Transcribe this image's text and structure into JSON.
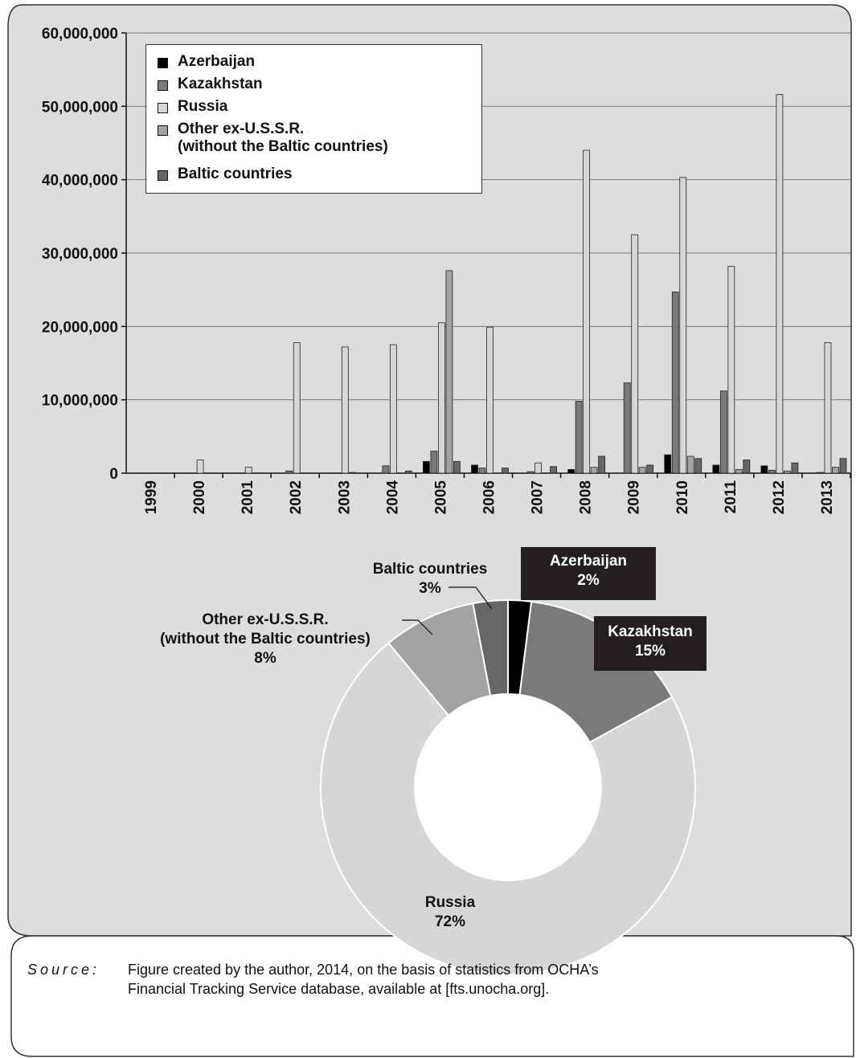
{
  "colors": {
    "panel_bg": "#dcdddf",
    "azerbaijan": "#000000",
    "kazakhstan": "#7a7a7a",
    "russia": "#d6d6d6",
    "other_ex_ussr": "#a3a3a3",
    "baltic": "#666666"
  },
  "chart_data": [
    {
      "type": "bar",
      "categories": [
        "1999",
        "2000",
        "2001",
        "2002",
        "2003",
        "2004",
        "2005",
        "2006",
        "2007",
        "2008",
        "2009",
        "2010",
        "2011",
        "2012",
        "2013"
      ],
      "series": [
        {
          "name": "Azerbaijan",
          "values": [
            0,
            0,
            0,
            0,
            0,
            0,
            1600000,
            1100000,
            0,
            500000,
            0,
            2500000,
            1100000,
            1000000,
            0
          ]
        },
        {
          "name": "Kazakhstan",
          "values": [
            0,
            0,
            0,
            300000,
            0,
            1000000,
            3000000,
            700000,
            200000,
            9800000,
            12300000,
            24700000,
            11200000,
            400000,
            100000
          ]
        },
        {
          "name": "Russia",
          "values": [
            0,
            1800000,
            800000,
            17800000,
            17200000,
            17500000,
            20500000,
            19900000,
            1400000,
            44000000,
            32500000,
            40300000,
            28200000,
            51600000,
            17800000
          ]
        },
        {
          "name": "Other ex-U.S.S.R.\n(without the Baltic countries)",
          "values": [
            0,
            0,
            0,
            0,
            100000,
            0,
            27600000,
            0,
            0,
            800000,
            800000,
            2300000,
            500000,
            300000,
            800000
          ]
        },
        {
          "name": "Baltic countries",
          "values": [
            0,
            0,
            0,
            0,
            0,
            300000,
            1600000,
            700000,
            900000,
            2300000,
            1100000,
            2000000,
            1800000,
            1400000,
            2000000
          ]
        }
      ],
      "yticks": [
        "0",
        "10,000,000",
        "20,000,000",
        "30,000,000",
        "40,000,000",
        "50,000,000",
        "60,000,000"
      ],
      "ylim": [
        0,
        60000000
      ],
      "grid": true,
      "legend": "top-left"
    },
    {
      "type": "pie",
      "donut": true,
      "slices": [
        {
          "name": "Azerbaijan",
          "pct_label": "2%",
          "value": 2
        },
        {
          "name": "Kazakhstan",
          "pct_label": "15%",
          "value": 15
        },
        {
          "name": "Russia",
          "pct_label": "72%",
          "value": 72
        },
        {
          "name": "Other ex-U.S.S.R.\n(without the Baltic countries)",
          "pct_label": "8%",
          "value": 8
        },
        {
          "name": "Baltic countries",
          "pct_label": "3%",
          "value": 3
        }
      ]
    }
  ],
  "source": {
    "label": "Source:",
    "text": "Figure created by the author, 2014, on the basis of statistics from OCHA’s\nFinancial Tracking Service database, available at [fts.unocha.org]."
  }
}
